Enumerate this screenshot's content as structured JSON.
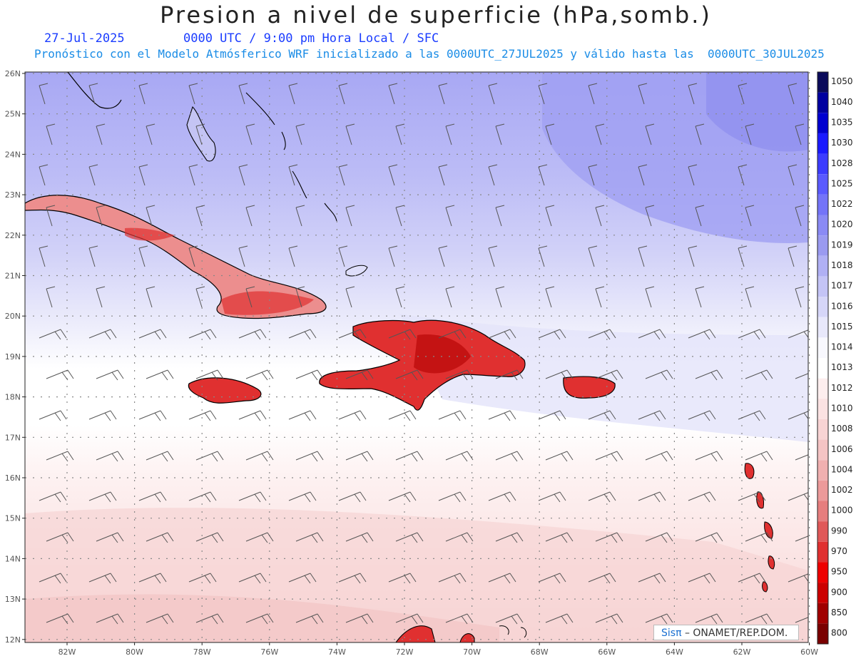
{
  "header": {
    "title": "Presion a nivel de superficie (hPa,somb.)",
    "date": "27-Jul-2025",
    "time": "0000 UTC / 9:00 pm Hora Local / SFC",
    "model_line": "Pronóstico con el Modelo Atmósferico WRF inicializado a las 0000UTC_27JUL2025 y válido hasta las  0000UTC_30JUL2025"
  },
  "credit": {
    "brand": "Sisπ",
    "text": "– ONAMET/REP.DOM."
  },
  "map": {
    "lat_labels": [
      "26N",
      "25N",
      "24N",
      "23N",
      "22N",
      "21N",
      "20N",
      "19N",
      "18N",
      "17N",
      "16N",
      "15N",
      "14N",
      "13N",
      "12N"
    ],
    "lon_labels": [
      "82W",
      "80W",
      "78W",
      "76W",
      "74W",
      "72W",
      "70W",
      "68W",
      "66W",
      "64W",
      "62W",
      "60W"
    ],
    "colorbar": {
      "levels": [
        "1050",
        "1040",
        "1035",
        "1030",
        "1028",
        "1025",
        "1022",
        "1020",
        "1019",
        "1018",
        "1017",
        "1016",
        "1015",
        "1014",
        "1013",
        "1012",
        "1010",
        "1008",
        "1006",
        "1004",
        "1002",
        "1000",
        "990",
        "970",
        "950",
        "900",
        "850",
        "800"
      ],
      "colors": [
        "#0a0a5a",
        "#0000a0",
        "#0000d0",
        "#1a1aff",
        "#3c3cff",
        "#5a5aff",
        "#7474f8",
        "#8a8af4",
        "#9a9af0",
        "#b0b0f4",
        "#c4c4f6",
        "#d6d6f8",
        "#e8e8fb",
        "#f8f8fe",
        "#ffffff",
        "#fdeeee",
        "#fbe2e2",
        "#f8d4d4",
        "#f4c4c4",
        "#f0b0b0",
        "#ec9a9a",
        "#e67e7e",
        "#e05858",
        "#e03030",
        "#ee0000",
        "#cc0000",
        "#a00000",
        "#7a0000"
      ]
    },
    "colors": {
      "coast": "#000000",
      "grid": "#888888",
      "barb": "#555555"
    }
  }
}
